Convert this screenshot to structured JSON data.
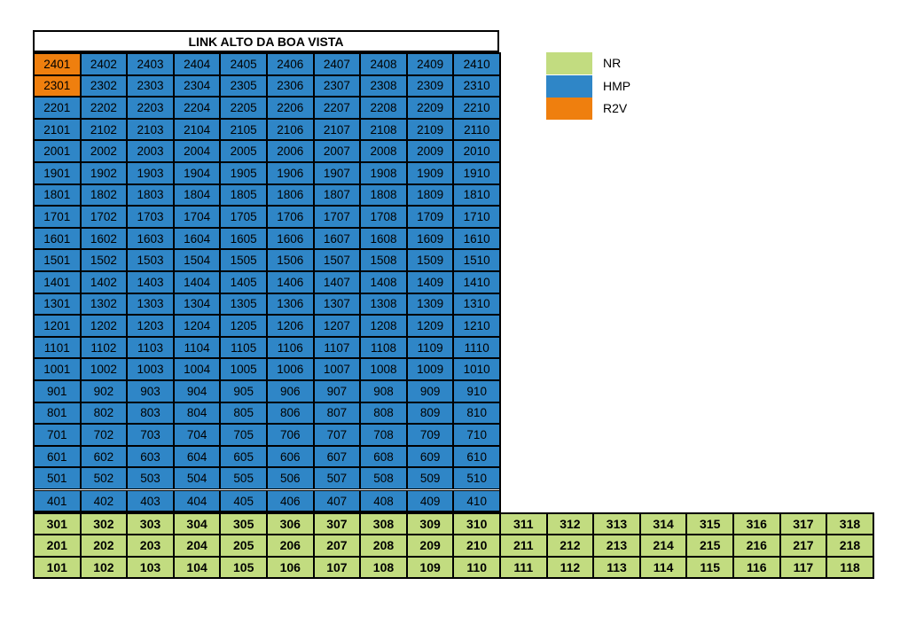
{
  "title": "LINK ALTO DA BOA VISTA",
  "colors": {
    "NR": "#c2dc80",
    "HMP": "#2f86c7",
    "R2V": "#ef7f0e"
  },
  "legend": [
    {
      "label": "NR",
      "color": "#c2dc80"
    },
    {
      "label": "HMP",
      "color": "#2f86c7"
    },
    {
      "label": "R2V",
      "color": "#ef7f0e"
    }
  ],
  "tower": {
    "floors": [
      24,
      23,
      22,
      21,
      20,
      19,
      18,
      17,
      16,
      15,
      14,
      13,
      12,
      11,
      10,
      9,
      8,
      7,
      6,
      5,
      4
    ],
    "units_per_floor": 10,
    "default_type": "HMP",
    "overrides": {
      "2401": "R2V",
      "2301": "R2V"
    }
  },
  "low_floors": {
    "floors": [
      3,
      2,
      1
    ],
    "units_per_floor": 18,
    "type": "NR"
  }
}
